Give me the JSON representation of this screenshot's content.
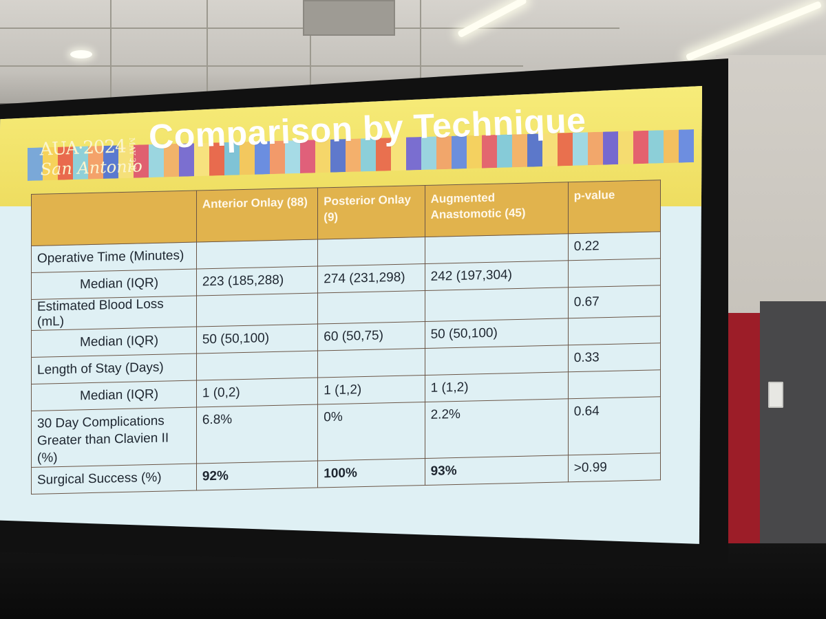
{
  "slide": {
    "logo_line1": "AUA·2024",
    "logo_line2": "San Antonio",
    "logo_dates": "MAY 3-6",
    "title": "Comparison by Technique"
  },
  "table": {
    "headers": [
      "",
      "Anterior Onlay (88)",
      "Posterior Onlay (9)",
      "Augmented Anastomotic (45)",
      "p-value"
    ],
    "rows": [
      [
        "Operative Time (Minutes)",
        "",
        "",
        "",
        "0.22"
      ],
      [
        "Median (IQR)",
        "223 (185,288)",
        "274 (231,298)",
        "242 (197,304)",
        ""
      ],
      [
        "Estimated Blood Loss (mL)",
        "",
        "",
        "",
        "0.67"
      ],
      [
        "Median (IQR)",
        "50 (50,100)",
        "60 (50,75)",
        "50 (50,100)",
        ""
      ],
      [
        "Length of Stay (Days)",
        "",
        "",
        "",
        "0.33"
      ],
      [
        "Median (IQR)",
        "1 (0,2)",
        "1 (1,2)",
        "1 (1,2)",
        ""
      ],
      [
        "30 Day Complications Greater than Clavien II (%)",
        "6.8%",
        "0%",
        "2.2%",
        "0.64"
      ],
      [
        "Surgical Success (%)",
        "92%",
        "100%",
        "93%",
        ">0.99"
      ]
    ]
  },
  "colors": {
    "banner": "#f2e46c",
    "header_fill": "#e1b34d",
    "slide_bg": "#dff0f4"
  }
}
